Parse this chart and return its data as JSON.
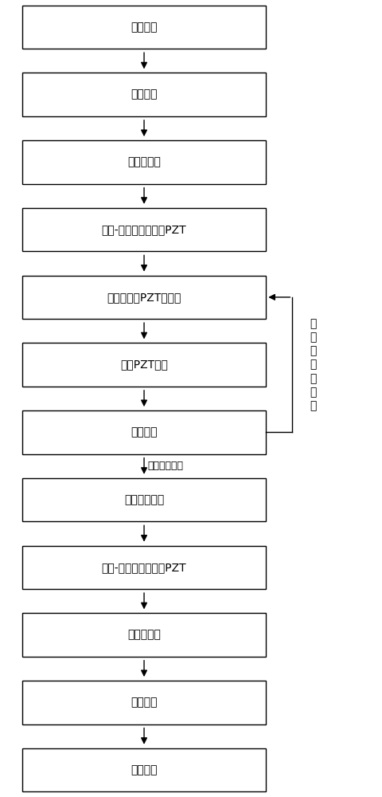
{
  "boxes": [
    {
      "label": "准备基片"
    },
    {
      "label": "基片氧化"
    },
    {
      "label": "溅射底电极"
    },
    {
      "label": "溶胶-凝胶法制备底层PZT"
    },
    {
      "label": "电射流沉积PZT悬浮液"
    },
    {
      "label": "旋涂PZT溶胶"
    },
    {
      "label": "退火结晶"
    },
    {
      "label": "机械研磨抛光"
    },
    {
      "label": "溶胶-凝胶法制备顶层PZT"
    },
    {
      "label": "溅射顶电极"
    },
    {
      "label": "极化处理"
    },
    {
      "label": "制备完成"
    }
  ],
  "box_color": "#ffffff",
  "box_edge_color": "#000000",
  "arrow_color": "#000000",
  "font_size": 14,
  "feedback_label_not_reached": "未\n达\n到\n所\n设\n厚\n度",
  "feedback_label_reached": "达到所设厚度",
  "bg_color": "#ffffff",
  "fig_width": 4.8,
  "fig_height": 10.0,
  "dpi": 100
}
